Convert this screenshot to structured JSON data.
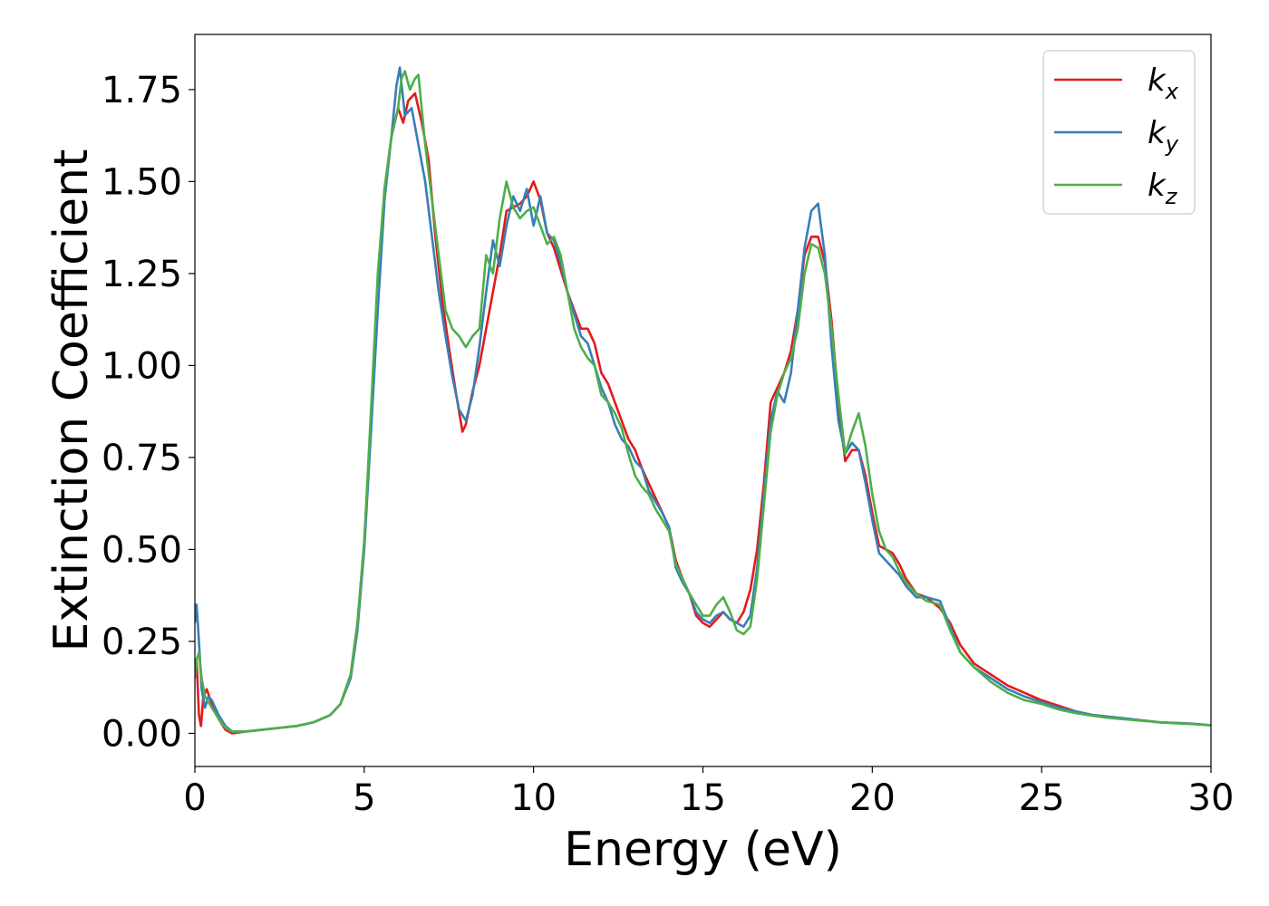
{
  "chart_data": {
    "type": "line",
    "title": "",
    "xlabel": "Energy (eV)",
    "ylabel": "Extinction Coefficient",
    "xlim": [
      0,
      30
    ],
    "ylim": [
      -0.09,
      1.9
    ],
    "x_ticks": [
      "0",
      "5",
      "10",
      "15",
      "20",
      "25",
      "30"
    ],
    "y_ticks": [
      "0.00",
      "0.25",
      "0.50",
      "0.75",
      "1.00",
      "1.25",
      "1.50",
      "1.75"
    ],
    "grid": false,
    "legend_position": "top-right",
    "series": [
      {
        "name": "k_x",
        "legend_main": "k",
        "legend_sub": "x",
        "color": "#e41a1c",
        "x": [
          0,
          0.05,
          0.12,
          0.18,
          0.25,
          0.35,
          0.5,
          0.7,
          0.9,
          1.1,
          1.5,
          2,
          2.5,
          3,
          3.5,
          4,
          4.3,
          4.6,
          4.8,
          5.0,
          5.2,
          5.4,
          5.6,
          5.8,
          6.0,
          6.15,
          6.3,
          6.5,
          6.7,
          6.9,
          7.1,
          7.3,
          7.5,
          7.7,
          7.9,
          8.0,
          8.2,
          8.4,
          8.6,
          8.8,
          9.0,
          9.2,
          9.4,
          9.6,
          9.8,
          10.0,
          10.2,
          10.4,
          10.6,
          10.8,
          11.0,
          11.2,
          11.4,
          11.6,
          11.8,
          12.0,
          12.2,
          12.4,
          12.6,
          12.8,
          13.0,
          13.2,
          13.4,
          13.6,
          13.8,
          14.0,
          14.2,
          14.4,
          14.6,
          14.8,
          15.0,
          15.2,
          15.4,
          15.6,
          15.8,
          16.0,
          16.2,
          16.4,
          16.6,
          16.8,
          17.0,
          17.2,
          17.4,
          17.6,
          17.8,
          18.0,
          18.2,
          18.4,
          18.6,
          18.8,
          19.0,
          19.2,
          19.4,
          19.6,
          19.8,
          20.0,
          20.2,
          20.4,
          20.6,
          20.8,
          21.0,
          21.3,
          21.6,
          22.0,
          22.3,
          22.6,
          23.0,
          23.5,
          24.0,
          24.5,
          25.0,
          25.5,
          26.0,
          26.5,
          27.0,
          27.5,
          28.0,
          28.5,
          29.0,
          29.5,
          30.0
        ],
        "y": [
          0.2,
          0.2,
          0.05,
          0.02,
          0.1,
          0.12,
          0.08,
          0.04,
          0.01,
          0.0,
          0.005,
          0.01,
          0.015,
          0.02,
          0.03,
          0.05,
          0.08,
          0.16,
          0.3,
          0.52,
          0.85,
          1.2,
          1.48,
          1.62,
          1.7,
          1.66,
          1.72,
          1.74,
          1.66,
          1.56,
          1.35,
          1.18,
          1.05,
          0.93,
          0.82,
          0.84,
          0.93,
          1.0,
          1.1,
          1.2,
          1.3,
          1.42,
          1.43,
          1.44,
          1.46,
          1.5,
          1.45,
          1.36,
          1.32,
          1.26,
          1.2,
          1.15,
          1.1,
          1.1,
          1.06,
          0.98,
          0.95,
          0.9,
          0.85,
          0.8,
          0.77,
          0.72,
          0.68,
          0.64,
          0.6,
          0.56,
          0.47,
          0.42,
          0.38,
          0.32,
          0.3,
          0.29,
          0.31,
          0.33,
          0.31,
          0.3,
          0.33,
          0.39,
          0.5,
          0.68,
          0.9,
          0.94,
          0.98,
          1.04,
          1.15,
          1.3,
          1.35,
          1.35,
          1.28,
          1.12,
          0.9,
          0.74,
          0.77,
          0.77,
          0.7,
          0.6,
          0.51,
          0.5,
          0.49,
          0.46,
          0.42,
          0.38,
          0.37,
          0.34,
          0.3,
          0.24,
          0.19,
          0.16,
          0.13,
          0.11,
          0.09,
          0.075,
          0.06,
          0.05,
          0.045,
          0.04,
          0.035,
          0.03,
          0.028,
          0.026,
          0.022
        ]
      },
      {
        "name": "k_y",
        "legend_main": "k",
        "legend_sub": "y",
        "color": "#377eb8",
        "x": [
          0,
          0.05,
          0.12,
          0.2,
          0.3,
          0.4,
          0.5,
          0.7,
          0.9,
          1.1,
          1.5,
          2,
          2.5,
          3,
          3.5,
          4,
          4.3,
          4.6,
          4.8,
          5.0,
          5.2,
          5.4,
          5.6,
          5.8,
          5.95,
          6.05,
          6.2,
          6.4,
          6.6,
          6.8,
          7.0,
          7.2,
          7.4,
          7.6,
          7.8,
          8.0,
          8.2,
          8.4,
          8.6,
          8.8,
          9.0,
          9.2,
          9.4,
          9.6,
          9.8,
          10.0,
          10.2,
          10.4,
          10.6,
          10.8,
          11.0,
          11.2,
          11.4,
          11.6,
          11.8,
          12.0,
          12.2,
          12.4,
          12.6,
          12.8,
          13.0,
          13.2,
          13.4,
          13.6,
          13.8,
          14.0,
          14.2,
          14.4,
          14.6,
          14.8,
          15.0,
          15.2,
          15.4,
          15.6,
          15.8,
          16.0,
          16.2,
          16.4,
          16.6,
          16.8,
          17.0,
          17.2,
          17.4,
          17.6,
          17.8,
          18.0,
          18.2,
          18.4,
          18.6,
          18.8,
          19.0,
          19.2,
          19.4,
          19.6,
          19.8,
          20.0,
          20.2,
          20.4,
          20.6,
          20.8,
          21.0,
          21.3,
          21.6,
          22.0,
          22.3,
          22.6,
          23.0,
          23.5,
          24.0,
          24.5,
          25.0,
          25.5,
          26.0,
          26.5,
          27.0,
          27.5,
          28.0,
          28.5,
          29.0,
          29.5,
          30.0
        ],
        "y": [
          0.3,
          0.35,
          0.25,
          0.12,
          0.07,
          0.1,
          0.09,
          0.05,
          0.02,
          0.005,
          0.005,
          0.01,
          0.015,
          0.02,
          0.03,
          0.05,
          0.08,
          0.15,
          0.28,
          0.5,
          0.82,
          1.15,
          1.45,
          1.62,
          1.76,
          1.81,
          1.68,
          1.7,
          1.6,
          1.5,
          1.35,
          1.2,
          1.08,
          0.97,
          0.88,
          0.85,
          0.92,
          1.05,
          1.2,
          1.34,
          1.27,
          1.38,
          1.46,
          1.42,
          1.48,
          1.38,
          1.46,
          1.36,
          1.34,
          1.28,
          1.2,
          1.14,
          1.08,
          1.06,
          1.0,
          0.94,
          0.9,
          0.84,
          0.8,
          0.78,
          0.74,
          0.72,
          0.66,
          0.63,
          0.6,
          0.56,
          0.45,
          0.41,
          0.38,
          0.33,
          0.31,
          0.3,
          0.32,
          0.33,
          0.31,
          0.3,
          0.29,
          0.32,
          0.45,
          0.65,
          0.85,
          0.93,
          0.9,
          0.98,
          1.15,
          1.32,
          1.42,
          1.44,
          1.3,
          1.05,
          0.85,
          0.76,
          0.79,
          0.77,
          0.68,
          0.58,
          0.49,
          0.47,
          0.45,
          0.43,
          0.4,
          0.37,
          0.37,
          0.36,
          0.29,
          0.22,
          0.18,
          0.15,
          0.12,
          0.1,
          0.085,
          0.07,
          0.06,
          0.05,
          0.045,
          0.04,
          0.035,
          0.03,
          0.028,
          0.026,
          0.022
        ]
      },
      {
        "name": "k_z",
        "legend_main": "k",
        "legend_sub": "z",
        "color": "#4daf4a",
        "x": [
          0,
          0.05,
          0.12,
          0.2,
          0.3,
          0.5,
          0.7,
          0.9,
          1.1,
          1.5,
          2,
          2.5,
          3,
          3.5,
          4,
          4.3,
          4.6,
          4.8,
          5.0,
          5.2,
          5.4,
          5.6,
          5.8,
          6.0,
          6.1,
          6.2,
          6.35,
          6.5,
          6.6,
          6.8,
          7.0,
          7.2,
          7.4,
          7.6,
          7.8,
          8.0,
          8.2,
          8.4,
          8.6,
          8.8,
          9.0,
          9.2,
          9.4,
          9.6,
          9.8,
          10.0,
          10.2,
          10.4,
          10.6,
          10.8,
          11.0,
          11.2,
          11.4,
          11.6,
          11.8,
          12.0,
          12.2,
          12.4,
          12.6,
          12.8,
          13.0,
          13.2,
          13.4,
          13.6,
          13.8,
          14.0,
          14.2,
          14.4,
          14.6,
          14.8,
          15.0,
          15.2,
          15.4,
          15.6,
          15.8,
          16.0,
          16.2,
          16.4,
          16.6,
          16.8,
          17.0,
          17.2,
          17.4,
          17.6,
          17.8,
          18.0,
          18.2,
          18.4,
          18.6,
          18.8,
          19.0,
          19.2,
          19.4,
          19.6,
          19.8,
          20.0,
          20.2,
          20.4,
          20.6,
          20.8,
          21.0,
          21.3,
          21.6,
          22.0,
          22.3,
          22.6,
          23.0,
          23.5,
          24.0,
          24.5,
          25.0,
          25.5,
          26.0,
          26.5,
          27.0,
          27.5,
          28.0,
          28.5,
          29.0,
          29.5,
          30.0
        ],
        "y": [
          0.15,
          0.2,
          0.22,
          0.15,
          0.1,
          0.07,
          0.04,
          0.015,
          0.005,
          0.005,
          0.01,
          0.015,
          0.02,
          0.03,
          0.05,
          0.08,
          0.16,
          0.3,
          0.52,
          0.88,
          1.25,
          1.48,
          1.62,
          1.7,
          1.78,
          1.8,
          1.75,
          1.78,
          1.79,
          1.6,
          1.45,
          1.3,
          1.15,
          1.1,
          1.08,
          1.05,
          1.08,
          1.1,
          1.3,
          1.25,
          1.4,
          1.5,
          1.43,
          1.4,
          1.42,
          1.43,
          1.38,
          1.33,
          1.35,
          1.3,
          1.2,
          1.1,
          1.05,
          1.02,
          1.0,
          0.92,
          0.9,
          0.87,
          0.83,
          0.76,
          0.7,
          0.67,
          0.65,
          0.61,
          0.58,
          0.55,
          0.46,
          0.42,
          0.38,
          0.35,
          0.32,
          0.32,
          0.35,
          0.37,
          0.33,
          0.28,
          0.27,
          0.29,
          0.42,
          0.62,
          0.82,
          0.92,
          0.98,
          1.02,
          1.1,
          1.25,
          1.33,
          1.32,
          1.25,
          1.1,
          0.92,
          0.76,
          0.82,
          0.87,
          0.78,
          0.65,
          0.55,
          0.5,
          0.48,
          0.44,
          0.41,
          0.38,
          0.36,
          0.35,
          0.28,
          0.22,
          0.18,
          0.14,
          0.11,
          0.09,
          0.08,
          0.065,
          0.055,
          0.048,
          0.042,
          0.038,
          0.034,
          0.03,
          0.027,
          0.025,
          0.022
        ]
      }
    ]
  }
}
